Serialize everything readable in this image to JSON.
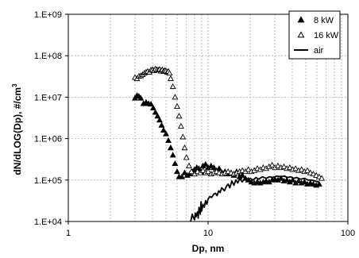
{
  "chart_data": {
    "type": "scatter",
    "title": "",
    "xlabel": "Dp, nm",
    "ylabel_main": "dN/dLOG(Dp), #/cm",
    "ylabel_sup": "3",
    "x_scale": "log",
    "y_scale": "log",
    "xlim": [
      1,
      100
    ],
    "ylim": [
      10000,
      1000000000
    ],
    "x_ticks": [
      "1",
      "10",
      "100"
    ],
    "y_ticks": [
      "1.E+04",
      "1.E+05",
      "1.E+06",
      "1.E+07",
      "1.E+08",
      "1.E+09"
    ],
    "grid": "vertical minor and major gridlines on x; horizontal gridlines at y decades",
    "legend_position": "top-right",
    "series": [
      {
        "name": "8 kW",
        "marker": "filled-triangle",
        "color": "#000000",
        "points": [
          [
            3.0,
            9500000.0
          ],
          [
            3.1,
            11000000.0
          ],
          [
            3.2,
            10500000.0
          ],
          [
            3.3,
            9500000.0
          ],
          [
            3.45,
            7000000.0
          ],
          [
            3.6,
            7500000.0
          ],
          [
            3.75,
            7000000.0
          ],
          [
            3.9,
            6800000.0
          ],
          [
            4.05,
            5500000.0
          ],
          [
            4.2,
            4300000.0
          ],
          [
            4.35,
            3500000.0
          ],
          [
            4.5,
            2800000.0
          ],
          [
            4.65,
            2100000.0
          ],
          [
            4.8,
            1600000.0
          ],
          [
            5.0,
            1300000.0
          ],
          [
            5.2,
            900000.0
          ],
          [
            5.4,
            600000.0
          ],
          [
            5.6,
            400000.0
          ],
          [
            5.8,
            250000.0
          ],
          [
            6.0,
            160000.0
          ],
          [
            6.2,
            120000.0
          ],
          [
            6.5,
            120000.0
          ],
          [
            6.8,
            150000.0
          ],
          [
            7.1,
            130000.0
          ],
          [
            7.4,
            140000.0
          ],
          [
            7.7,
            160000.0
          ],
          [
            8.0,
            180000.0
          ],
          [
            8.3,
            200000.0
          ],
          [
            8.6,
            190000.0
          ],
          [
            8.9,
            160000.0
          ],
          [
            9.2,
            220000.0
          ],
          [
            9.6,
            240000.0
          ],
          [
            10.0,
            200000.0
          ],
          [
            10.5,
            220000.0
          ],
          [
            11.0,
            200000.0
          ],
          [
            11.5,
            170000.0
          ],
          [
            12.0,
            190000.0
          ],
          [
            12.6,
            150000.0
          ],
          [
            13.2,
            160000.0
          ],
          [
            13.9,
            140000.0
          ],
          [
            14.6,
            150000.0
          ],
          [
            15.3,
            130000.0
          ],
          [
            16.0,
            160000.0
          ],
          [
            16.8,
            120000.0
          ],
          [
            17.6,
            130000.0
          ],
          [
            18.5,
            110000.0
          ],
          [
            19.4,
            100000.0
          ],
          [
            20.4,
            90000.0
          ],
          [
            21.4,
            85000.0
          ],
          [
            22.5,
            90000.0
          ],
          [
            23.6,
            85000.0
          ],
          [
            24.8,
            90000.0
          ],
          [
            26.0,
            95000.0
          ],
          [
            27.3,
            90000.0
          ],
          [
            28.7,
            100000.0
          ],
          [
            30.1,
            105000.0
          ],
          [
            31.6,
            100000.0
          ],
          [
            33.2,
            110000.0
          ],
          [
            34.9,
            95000.0
          ],
          [
            36.6,
            100000.0
          ],
          [
            38.4,
            90000.0
          ],
          [
            40.3,
            100000.0
          ],
          [
            42.3,
            85000.0
          ],
          [
            44.4,
            95000.0
          ],
          [
            46.6,
            85000.0
          ],
          [
            48.9,
            90000.0
          ],
          [
            51.3,
            80000.0
          ],
          [
            53.9,
            85000.0
          ],
          [
            56.6,
            80000.0
          ],
          [
            59.4,
            75000.0
          ],
          [
            62.3,
            80000.0
          ]
        ]
      },
      {
        "name": "16 kW",
        "marker": "open-triangle",
        "color": "#000000",
        "points": [
          [
            3.0,
            30000000.0
          ],
          [
            3.1,
            28000000.0
          ],
          [
            3.2,
            32000000.0
          ],
          [
            3.3,
            33000000.0
          ],
          [
            3.4,
            35000000.0
          ],
          [
            3.5,
            38000000.0
          ],
          [
            3.6,
            40000000.0
          ],
          [
            3.7,
            42000000.0
          ],
          [
            3.8,
            40000000.0
          ],
          [
            3.9,
            45000000.0
          ],
          [
            4.0,
            46000000.0
          ],
          [
            4.1,
            44000000.0
          ],
          [
            4.2,
            48000000.0
          ],
          [
            4.3,
            46000000.0
          ],
          [
            4.4,
            45000000.0
          ],
          [
            4.5,
            47000000.0
          ],
          [
            4.6,
            43000000.0
          ],
          [
            4.7,
            46000000.0
          ],
          [
            4.8,
            42000000.0
          ],
          [
            4.9,
            44000000.0
          ],
          [
            5.0,
            43000000.0
          ],
          [
            5.1,
            40000000.0
          ],
          [
            5.2,
            42000000.0
          ],
          [
            5.3,
            38000000.0
          ],
          [
            5.4,
            28000000.0
          ],
          [
            5.6,
            18000000.0
          ],
          [
            5.8,
            10000000.0
          ],
          [
            6.0,
            6000000.0
          ],
          [
            6.2,
            3500000.0
          ],
          [
            6.4,
            2000000.0
          ],
          [
            6.6,
            1100000.0
          ],
          [
            6.8,
            600000.0
          ],
          [
            7.0,
            350000.0
          ],
          [
            7.3,
            220000.0
          ],
          [
            7.6,
            160000.0
          ],
          [
            8.0,
            140000.0
          ],
          [
            8.4,
            160000.0
          ],
          [
            8.8,
            150000.0
          ],
          [
            9.2,
            170000.0
          ],
          [
            9.6,
            150000.0
          ],
          [
            10.0,
            160000.0
          ],
          [
            10.5,
            140000.0
          ],
          [
            11.0,
            150000.0
          ],
          [
            11.5,
            160000.0
          ],
          [
            12.0,
            150000.0
          ],
          [
            12.6,
            140000.0
          ],
          [
            13.2,
            150000.0
          ],
          [
            13.9,
            160000.0
          ],
          [
            14.6,
            150000.0
          ],
          [
            15.3,
            140000.0
          ],
          [
            16.0,
            150000.0
          ],
          [
            16.8,
            160000.0
          ],
          [
            17.6,
            170000.0
          ],
          [
            18.5,
            160000.0
          ],
          [
            19.4,
            180000.0
          ],
          [
            20.4,
            160000.0
          ],
          [
            21.4,
            170000.0
          ],
          [
            22.5,
            190000.0
          ],
          [
            23.6,
            180000.0
          ],
          [
            24.8,
            200000.0
          ],
          [
            26.0,
            190000.0
          ],
          [
            27.3,
            210000.0
          ],
          [
            28.7,
            230000.0
          ],
          [
            30.1,
            200000.0
          ],
          [
            31.6,
            220000.0
          ],
          [
            33.2,
            200000.0
          ],
          [
            34.9,
            210000.0
          ],
          [
            36.6,
            190000.0
          ],
          [
            38.4,
            200000.0
          ],
          [
            40.3,
            180000.0
          ],
          [
            42.3,
            190000.0
          ],
          [
            44.4,
            170000.0
          ],
          [
            46.6,
            180000.0
          ],
          [
            48.9,
            160000.0
          ],
          [
            51.3,
            170000.0
          ],
          [
            53.9,
            150000.0
          ],
          [
            56.6,
            140000.0
          ],
          [
            59.4,
            130000.0
          ],
          [
            62.3,
            120000.0
          ],
          [
            65.0,
            110000.0
          ]
        ]
      },
      {
        "name": "air",
        "marker": "line",
        "color": "#000000",
        "points": [
          [
            7.5,
            10000.0
          ],
          [
            7.6,
            12000.0
          ],
          [
            7.7,
            15000.0
          ],
          [
            7.8,
            13000.0
          ],
          [
            8.0,
            11000.0
          ],
          [
            8.1,
            16000.0
          ],
          [
            8.2,
            13000.0
          ],
          [
            8.4,
            17000.0
          ],
          [
            8.5,
            12000.0
          ],
          [
            8.6,
            22000.0
          ],
          [
            8.8,
            15000.0
          ],
          [
            8.9,
            30000.0
          ],
          [
            9.0,
            18000.0
          ],
          [
            9.2,
            26000.0
          ],
          [
            9.4,
            22000.0
          ],
          [
            9.6,
            32000.0
          ],
          [
            9.8,
            26000.0
          ],
          [
            10.0,
            35000.0
          ],
          [
            10.3,
            40000.0
          ],
          [
            10.6,
            38000.0
          ],
          [
            11.0,
            46000.0
          ],
          [
            11.3,
            48000.0
          ],
          [
            11.6,
            42000.0
          ],
          [
            11.9,
            55000.0
          ],
          [
            12.2,
            50000.0
          ],
          [
            12.5,
            65000.0
          ],
          [
            12.8,
            60000.0
          ],
          [
            13.1,
            55000.0
          ],
          [
            13.5,
            70000.0
          ],
          [
            13.9,
            80000.0
          ],
          [
            14.3,
            65000.0
          ],
          [
            14.8,
            95000.0
          ],
          [
            15.3,
            75000.0
          ],
          [
            15.8,
            100000.0
          ],
          [
            16.3,
            85000.0
          ],
          [
            16.9,
            110000.0
          ],
          [
            17.5,
            90000.0
          ],
          [
            18.2,
            105000.0
          ],
          [
            19.0,
            95000.0
          ],
          [
            20.0,
            110000.0
          ],
          [
            21.0,
            100000.0
          ],
          [
            22.0,
            115000.0
          ],
          [
            23.0,
            105000.0
          ],
          [
            24.5,
            120000.0
          ],
          [
            26.0,
            110000.0
          ],
          [
            27.5,
            120000.0
          ],
          [
            29.0,
            115000.0
          ],
          [
            31.0,
            125000.0
          ],
          [
            33.0,
            120000.0
          ],
          [
            35.0,
            125000.0
          ],
          [
            37.0,
            115000.0
          ],
          [
            39.0,
            120000.0
          ],
          [
            41.0,
            110000.0
          ],
          [
            43.0,
            115000.0
          ],
          [
            46.0,
            105000.0
          ],
          [
            49.0,
            110000.0
          ],
          [
            52.0,
            100000.0
          ],
          [
            55.0,
            100000.0
          ],
          [
            58.0,
            95000.0
          ],
          [
            62.0,
            90000.0
          ]
        ]
      }
    ]
  }
}
